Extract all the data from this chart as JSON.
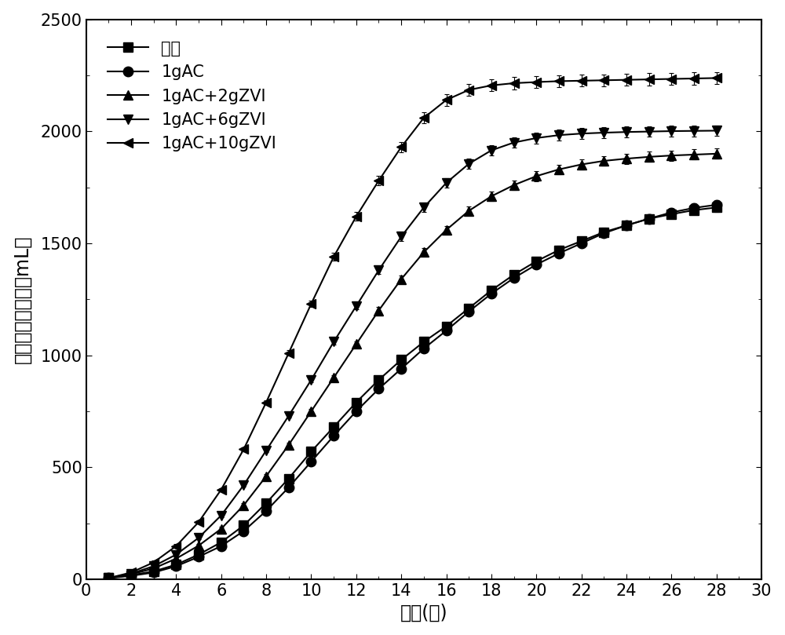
{
  "title": "",
  "xlabel": "时间(天)",
  "ylabel": "甲烷累积产气量（mL）",
  "xlim": [
    0,
    30
  ],
  "ylim": [
    0,
    2500
  ],
  "xticks": [
    0,
    2,
    4,
    6,
    8,
    10,
    12,
    14,
    16,
    18,
    20,
    22,
    24,
    26,
    28,
    30
  ],
  "yticks": [
    0,
    500,
    1000,
    1500,
    2000,
    2500
  ],
  "series": [
    {
      "label": "空白",
      "marker": "s",
      "x": [
        1,
        2,
        3,
        4,
        5,
        6,
        7,
        8,
        9,
        10,
        11,
        12,
        13,
        14,
        15,
        16,
        17,
        18,
        19,
        20,
        21,
        22,
        23,
        24,
        25,
        26,
        27,
        28
      ],
      "y": [
        5,
        18,
        35,
        65,
        110,
        165,
        240,
        340,
        450,
        570,
        680,
        790,
        890,
        980,
        1060,
        1130,
        1210,
        1290,
        1360,
        1420,
        1470,
        1510,
        1550,
        1580,
        1610,
        1630,
        1648,
        1660
      ]
    },
    {
      "label": "1gAC",
      "marker": "o",
      "x": [
        1,
        2,
        3,
        4,
        5,
        6,
        7,
        8,
        9,
        10,
        11,
        12,
        13,
        14,
        15,
        16,
        17,
        18,
        19,
        20,
        21,
        22,
        23,
        24,
        25,
        26,
        27,
        28
      ],
      "y": [
        5,
        15,
        30,
        58,
        100,
        148,
        215,
        305,
        410,
        525,
        640,
        750,
        850,
        940,
        1030,
        1110,
        1195,
        1275,
        1345,
        1405,
        1455,
        1500,
        1545,
        1580,
        1610,
        1638,
        1658,
        1672
      ]
    },
    {
      "label": "1gAC+2gZVI",
      "marker": "^",
      "x": [
        1,
        2,
        3,
        4,
        5,
        6,
        7,
        8,
        9,
        10,
        11,
        12,
        13,
        14,
        15,
        16,
        17,
        18,
        19,
        20,
        21,
        22,
        23,
        24,
        25,
        26,
        27,
        28
      ],
      "y": [
        5,
        22,
        48,
        92,
        150,
        225,
        330,
        460,
        600,
        750,
        900,
        1050,
        1200,
        1340,
        1460,
        1560,
        1645,
        1710,
        1760,
        1800,
        1830,
        1852,
        1868,
        1878,
        1886,
        1892,
        1896,
        1900
      ]
    },
    {
      "label": "1gAC+6gZVI",
      "marker": "v",
      "x": [
        1,
        2,
        3,
        4,
        5,
        6,
        7,
        8,
        9,
        10,
        11,
        12,
        13,
        14,
        15,
        16,
        17,
        18,
        19,
        20,
        21,
        22,
        23,
        24,
        25,
        26,
        27,
        28
      ],
      "y": [
        5,
        25,
        58,
        110,
        185,
        285,
        420,
        575,
        730,
        890,
        1060,
        1220,
        1380,
        1530,
        1660,
        1770,
        1855,
        1915,
        1950,
        1970,
        1983,
        1990,
        1994,
        1997,
        1999,
        2001,
        2002,
        2003
      ]
    },
    {
      "label": "1gAC+10gZVI",
      "marker": "<",
      "x": [
        1,
        2,
        3,
        4,
        5,
        6,
        7,
        8,
        9,
        10,
        11,
        12,
        13,
        14,
        15,
        16,
        17,
        18,
        19,
        20,
        21,
        22,
        23,
        24,
        25,
        26,
        27,
        28
      ],
      "y": [
        5,
        30,
        75,
        148,
        255,
        400,
        580,
        790,
        1010,
        1230,
        1440,
        1620,
        1780,
        1930,
        2060,
        2140,
        2185,
        2205,
        2215,
        2220,
        2224,
        2226,
        2228,
        2230,
        2232,
        2234,
        2236,
        2238
      ]
    }
  ],
  "line_color": "#000000",
  "marker_size": 9,
  "font_size": 17,
  "tick_font_size": 15,
  "legend_font_size": 15,
  "background_color": "#ffffff"
}
